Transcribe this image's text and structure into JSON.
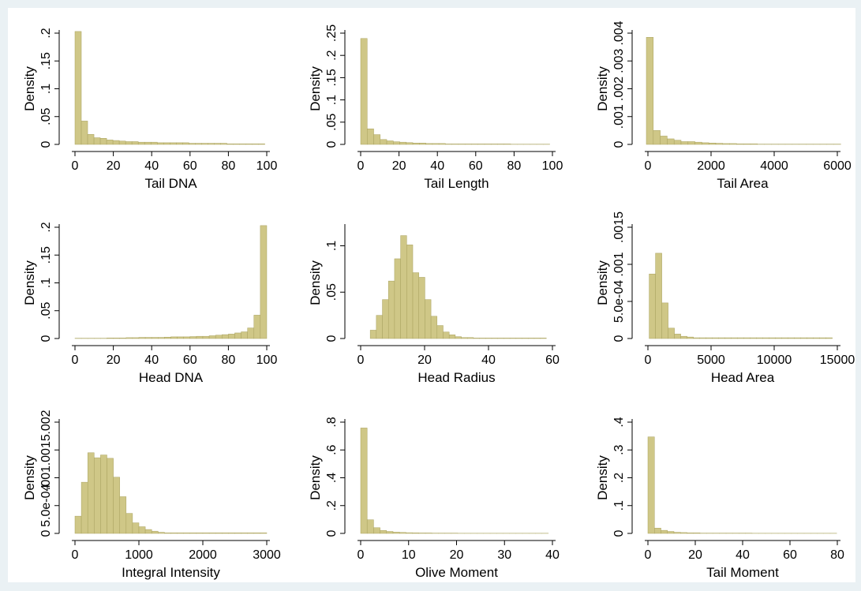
{
  "colors": {
    "page_bg": "#eaf1f4",
    "plot_bg": "#ffffff",
    "bar_fill": "#cfc787",
    "bar_stroke": "#a9a25f"
  },
  "chart_data": [
    {
      "type": "bar",
      "title": "",
      "xlabel": "Tail DNA",
      "ylabel": "Density",
      "xlim": [
        0,
        100
      ],
      "ylim": [
        0,
        0.2
      ],
      "xticks": [
        "0",
        "20",
        "40",
        "60",
        "80",
        "100"
      ],
      "yticks": [
        "0",
        ".05",
        ".1",
        ".15",
        ".2"
      ],
      "bin_start": 0,
      "bin_width": 3.3,
      "values": [
        0.203,
        0.042,
        0.018,
        0.012,
        0.011,
        0.008,
        0.007,
        0.006,
        0.005,
        0.005,
        0.004,
        0.004,
        0.004,
        0.003,
        0.003,
        0.003,
        0.003,
        0.003,
        0.002,
        0.002,
        0.002,
        0.002,
        0.002,
        0.002,
        0.001,
        0.001,
        0.001,
        0.001,
        0.001,
        0.001
      ]
    },
    {
      "type": "bar",
      "title": "",
      "xlabel": "Tail Length",
      "ylabel": "Density",
      "xlim": [
        0,
        100
      ],
      "ylim": [
        0,
        0.25
      ],
      "xticks": [
        "0",
        "20",
        "40",
        "60",
        "80",
        "100"
      ],
      "yticks": [
        "0",
        ".05",
        ".1",
        ".15",
        ".2",
        ".25"
      ],
      "bin_start": 0,
      "bin_width": 3.4,
      "values": [
        0.238,
        0.035,
        0.022,
        0.011,
        0.008,
        0.006,
        0.005,
        0.004,
        0.003,
        0.003,
        0.002,
        0.002,
        0.002,
        0.001,
        0.001,
        0.001,
        0.001,
        0.001,
        0.001,
        0.001,
        0.001,
        0.001,
        0.001,
        0.0005,
        0.0005,
        0.0005,
        0.0005,
        0.0005,
        0.0005
      ]
    },
    {
      "type": "bar",
      "title": "",
      "xlabel": "Tail Area",
      "ylabel": "Density",
      "xlim": [
        0,
        6000
      ],
      "ylim": [
        0,
        0.004
      ],
      "xticks": [
        "0",
        "2000",
        "4000",
        "6000"
      ],
      "yticks": [
        "0",
        ".001",
        ".002",
        ".003",
        ".004"
      ],
      "bin_start": -50,
      "bin_width": 220,
      "values": [
        0.00385,
        0.0005,
        0.0003,
        0.0002,
        0.00015,
        0.0001,
        0.0001,
        8e-05,
        6e-05,
        5e-05,
        4e-05,
        3e-05,
        3e-05,
        2e-05,
        2e-05,
        2e-05,
        1e-05,
        1e-05,
        1e-05,
        1e-05,
        1e-05,
        1e-05,
        1e-05,
        1e-05,
        1e-05,
        1e-05,
        1e-05,
        1e-05
      ]
    },
    {
      "type": "bar",
      "title": "",
      "xlabel": "Head DNA",
      "ylabel": "Density",
      "xlim": [
        0,
        100
      ],
      "ylim": [
        0,
        0.2
      ],
      "xticks": [
        "0",
        "20",
        "40",
        "60",
        "80",
        "100"
      ],
      "yticks": [
        "0",
        ".05",
        ".1",
        ".15",
        ".2"
      ],
      "bin_start": 0,
      "bin_width": 3.333,
      "values": [
        0.0005,
        0.0005,
        0.0005,
        0.0005,
        0.0005,
        0.001,
        0.001,
        0.001,
        0.0015,
        0.0015,
        0.002,
        0.002,
        0.002,
        0.002,
        0.0025,
        0.003,
        0.003,
        0.003,
        0.0035,
        0.004,
        0.004,
        0.005,
        0.006,
        0.007,
        0.008,
        0.01,
        0.012,
        0.019,
        0.042,
        0.203
      ]
    },
    {
      "type": "bar",
      "title": "",
      "xlabel": "Head Radius",
      "ylabel": "Density",
      "xlim": [
        0,
        60
      ],
      "ylim": [
        0,
        0.12
      ],
      "xticks": [
        "0",
        "20",
        "40",
        "60"
      ],
      "yticks": [
        "0",
        ".05",
        ".1"
      ],
      "bin_start": 3,
      "bin_width": 1.9,
      "values": [
        0.009,
        0.025,
        0.042,
        0.062,
        0.086,
        0.111,
        0.101,
        0.071,
        0.066,
        0.042,
        0.024,
        0.014,
        0.007,
        0.004,
        0.002,
        0.001,
        0.001,
        0.0005,
        0.0005,
        0.0005,
        0.0005,
        0.0005,
        0.0005,
        0.0005,
        0.0005,
        0.0005,
        0.0005,
        0.0005,
        0.0005
      ]
    },
    {
      "type": "bar",
      "title": "",
      "xlabel": "Head Area",
      "ylabel": "Density",
      "xlim": [
        0,
        15000
      ],
      "ylim": [
        0,
        0.0015
      ],
      "xticks": [
        "0",
        "5000",
        "10000",
        "15000"
      ],
      "yticks": [
        "0",
        "5.0e-04",
        ".001",
        ".0015"
      ],
      "bin_start": 100,
      "bin_width": 500,
      "values": [
        0.00087,
        0.00115,
        0.00048,
        0.00014,
        6e-05,
        3e-05,
        2e-05,
        1e-05,
        1e-05,
        1e-05,
        1e-05,
        1e-05,
        1e-05,
        1e-05,
        1e-05,
        1e-05,
        1e-05,
        1e-05,
        1e-05,
        1e-05,
        1e-05,
        1e-05,
        1e-05,
        1e-05,
        1e-05,
        1e-05,
        1e-05,
        1e-05,
        1e-05
      ]
    },
    {
      "type": "bar",
      "title": "",
      "xlabel": "Integral Intensity",
      "ylabel": "Density",
      "xlim": [
        0,
        3000
      ],
      "ylim": [
        0,
        0.002
      ],
      "xticks": [
        "0",
        "1000",
        "2000",
        "3000"
      ],
      "yticks": [
        "0",
        "5.0e-04",
        ".001",
        ".0015",
        ".002"
      ],
      "bin_start": 0,
      "bin_width": 100,
      "values": [
        0.00031,
        0.00092,
        0.00145,
        0.00136,
        0.00141,
        0.00135,
        0.00101,
        0.00066,
        0.00036,
        0.00019,
        0.00012,
        7e-05,
        4e-05,
        2e-05,
        1e-05,
        1e-05,
        1e-05,
        1e-05,
        1e-05,
        1e-05,
        1e-05,
        1e-05,
        1e-05,
        1e-05,
        1e-05,
        1e-05,
        1e-05,
        1e-05,
        1e-05,
        1e-05
      ]
    },
    {
      "type": "bar",
      "title": "",
      "xlabel": "Olive Moment",
      "ylabel": "Density",
      "xlim": [
        0,
        40
      ],
      "ylim": [
        0,
        0.8
      ],
      "xticks": [
        "0",
        "10",
        "20",
        "30",
        "40"
      ],
      "yticks": [
        "0",
        ".2",
        ".4",
        ".6",
        ".8"
      ],
      "bin_start": 0,
      "bin_width": 1.35,
      "values": [
        0.758,
        0.098,
        0.041,
        0.021,
        0.014,
        0.009,
        0.007,
        0.005,
        0.004,
        0.003,
        0.003,
        0.002,
        0.002,
        0.002,
        0.002,
        0.001,
        0.001,
        0.001,
        0.001,
        0.001,
        0.001,
        0.001,
        0.001,
        0.001,
        0.001,
        0.001,
        0.001,
        0.001,
        0.001
      ]
    },
    {
      "type": "bar",
      "title": "",
      "xlabel": "Tail Moment",
      "ylabel": "Density",
      "xlim": [
        0,
        80
      ],
      "ylim": [
        0,
        0.4
      ],
      "xticks": [
        "0",
        "20",
        "40",
        "60",
        "80"
      ],
      "yticks": [
        "0",
        ".1",
        ".2",
        ".3",
        ".4"
      ],
      "bin_start": 0,
      "bin_width": 2.75,
      "values": [
        0.347,
        0.019,
        0.011,
        0.007,
        0.004,
        0.003,
        0.002,
        0.002,
        0.001,
        0.001,
        0.001,
        0.001,
        0.001,
        0.001,
        0.001,
        0.001,
        0.0005,
        0.0005,
        0.0005,
        0.0005,
        0.0005,
        0.0005,
        0.0005,
        0.0005,
        0.0005,
        0.0005,
        0.0005,
        0.0005,
        0.0005
      ]
    }
  ]
}
